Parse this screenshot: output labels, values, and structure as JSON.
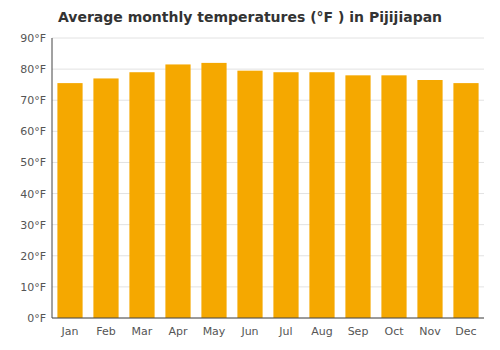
{
  "chart_data": {
    "type": "bar",
    "title": "Average monthly temperatures (°F ) in Pijijiapan",
    "categories": [
      "Jan",
      "Feb",
      "Mar",
      "Apr",
      "May",
      "Jun",
      "Jul",
      "Aug",
      "Sep",
      "Oct",
      "Nov",
      "Dec"
    ],
    "values": [
      75.5,
      77.0,
      79.0,
      81.5,
      82.0,
      79.5,
      79.0,
      79.0,
      78.0,
      78.0,
      76.5,
      75.5
    ],
    "color": "#F5A800",
    "ylim": [
      0,
      90
    ],
    "yticks": [
      {
        "value": 0,
        "label": "0°F"
      },
      {
        "value": 10,
        "label": "10°F"
      },
      {
        "value": 20,
        "label": "20°F"
      },
      {
        "value": 30,
        "label": "30°F"
      },
      {
        "value": 40,
        "label": "40°F"
      },
      {
        "value": 50,
        "label": "50°F"
      },
      {
        "value": 60,
        "label": "60°F"
      },
      {
        "value": 70,
        "label": "70°F"
      },
      {
        "value": 80,
        "label": "80°F"
      },
      {
        "value": 90,
        "label": "90°F"
      }
    ],
    "grid": true
  }
}
